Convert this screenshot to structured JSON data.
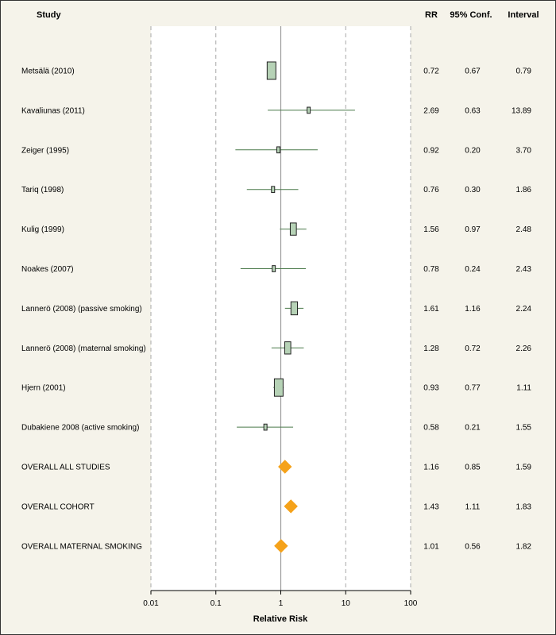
{
  "headers": {
    "study": "Study",
    "rr": "RR",
    "conf": "95% Conf.",
    "interval": "Interval"
  },
  "chart_data": {
    "type": "forest",
    "xlabel": "Relative Risk",
    "xscale": "log",
    "xlim": [
      0.01,
      100
    ],
    "xticks": [
      "0.01",
      "0.1",
      "1",
      "10",
      "100"
    ],
    "reference_line": 1,
    "grid": "vertical dashed",
    "colors": {
      "box": "#b6d2b6",
      "diamond": "#f5a21a",
      "ci_line": "#4a7a4a"
    },
    "rows": [
      {
        "label": "Metsälä (2010)",
        "rr": 0.72,
        "lower": 0.67,
        "upper": 0.79,
        "rr_text": "0.72",
        "lower_text": "0.67",
        "upper_text": "0.79",
        "kind": "study",
        "weight": 1.0
      },
      {
        "label": "Kavaliunas (2011)",
        "rr": 2.69,
        "lower": 0.63,
        "upper": 13.89,
        "rr_text": "2.69",
        "lower_text": "0.63",
        "upper_text": "13.89",
        "kind": "study",
        "weight": 0.35
      },
      {
        "label": "Zeiger (1995)",
        "rr": 0.92,
        "lower": 0.2,
        "upper": 3.7,
        "rr_text": "0.92",
        "lower_text": "0.20",
        "upper_text": "3.70",
        "kind": "study",
        "weight": 0.35
      },
      {
        "label": "Tariq (1998)",
        "rr": 0.76,
        "lower": 0.3,
        "upper": 1.86,
        "rr_text": "0.76",
        "lower_text": "0.30",
        "upper_text": "1.86",
        "kind": "study",
        "weight": 0.35
      },
      {
        "label": "Kulig (1999)",
        "rr": 1.56,
        "lower": 0.97,
        "upper": 2.48,
        "rr_text": "1.56",
        "lower_text": "0.97",
        "upper_text": "2.48",
        "kind": "study",
        "weight": 0.7
      },
      {
        "label": "Noakes (2007)",
        "rr": 0.78,
        "lower": 0.24,
        "upper": 2.43,
        "rr_text": "0.78",
        "lower_text": "0.24",
        "upper_text": "2.43",
        "kind": "study",
        "weight": 0.35
      },
      {
        "label": "Lannerö (2008) (passive smoking)",
        "rr": 1.61,
        "lower": 1.16,
        "upper": 2.24,
        "rr_text": "1.61",
        "lower_text": "1.16",
        "upper_text": "2.24",
        "kind": "study",
        "weight": 0.75
      },
      {
        "label": "Lannerö (2008) (maternal smoking)",
        "rr": 1.28,
        "lower": 0.72,
        "upper": 2.26,
        "rr_text": "1.28",
        "lower_text": "0.72",
        "upper_text": "2.26",
        "kind": "study",
        "weight": 0.7
      },
      {
        "label": "Hjern (2001)",
        "rr": 0.93,
        "lower": 0.77,
        "upper": 1.11,
        "rr_text": "0.93",
        "lower_text": "0.77",
        "upper_text": "1.11",
        "kind": "study",
        "weight": 1.0
      },
      {
        "label": "Dubakiene 2008 (active smoking)",
        "rr": 0.58,
        "lower": 0.21,
        "upper": 1.55,
        "rr_text": "0.58",
        "lower_text": "0.21",
        "upper_text": "1.55",
        "kind": "study",
        "weight": 0.35
      },
      {
        "label": "OVERALL ALL STUDIES",
        "rr": 1.16,
        "lower": 0.85,
        "upper": 1.59,
        "rr_text": "1.16",
        "lower_text": "0.85",
        "upper_text": "1.59",
        "kind": "overall"
      },
      {
        "label": "OVERALL COHORT",
        "rr": 1.43,
        "lower": 1.11,
        "upper": 1.83,
        "rr_text": "1.43",
        "lower_text": "1.11",
        "upper_text": "1.83",
        "kind": "overall"
      },
      {
        "label": "OVERALL MATERNAL SMOKING",
        "rr": 1.01,
        "lower": 0.56,
        "upper": 1.82,
        "rr_text": "1.01",
        "lower_text": "0.56",
        "upper_text": "1.82",
        "kind": "overall"
      }
    ]
  }
}
